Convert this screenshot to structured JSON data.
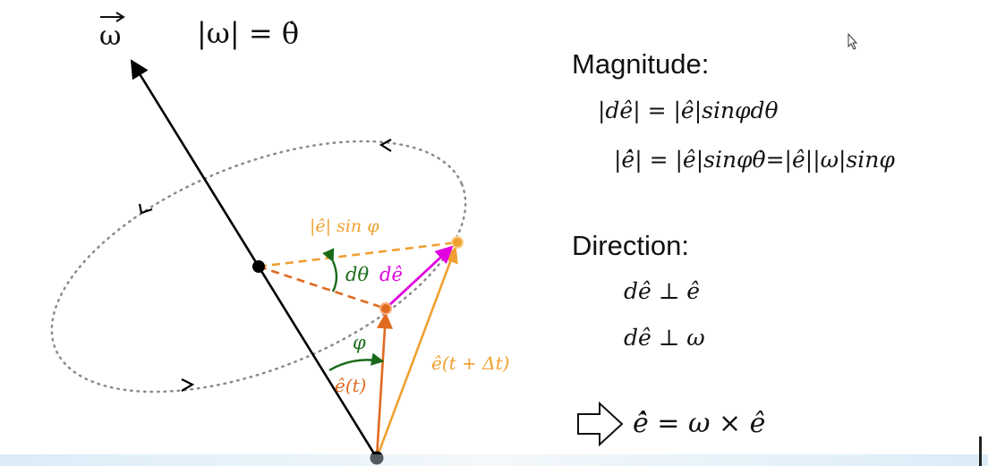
{
  "omega_label": "ω",
  "omega_magnitude": "|ω| = θ̇",
  "diagram": {
    "ehat_sin_label": "|ê| sin φ",
    "dtheta_label": "dθ",
    "de_label": "dê",
    "phi_label": "φ",
    "e_t_label": "ê(t)",
    "e_t_dt_label": "ê(t + Δt)"
  },
  "panel": {
    "magnitude_heading": "Magnitude:",
    "magnitude_eq1": "|dê| = |ê|sinφdθ",
    "magnitude_eq2": "|ė̂| = |ê|sinφθ̇=|ê||ω|sinφ",
    "direction_heading": "Direction:",
    "direction_eq1": "dê ⊥ ê",
    "direction_eq2": "dê ⊥ ω",
    "result_eq": "ė̂ = ω × ê"
  },
  "colors": {
    "axis": "#000000",
    "orange": "#f0a030",
    "dark_orange": "#e06a20",
    "magenta": "#e000e0",
    "green": "#1a6a1a",
    "dotted": "#8a8a8a"
  },
  "icons": [
    "cursor-icon",
    "implies-arrow-icon"
  ]
}
